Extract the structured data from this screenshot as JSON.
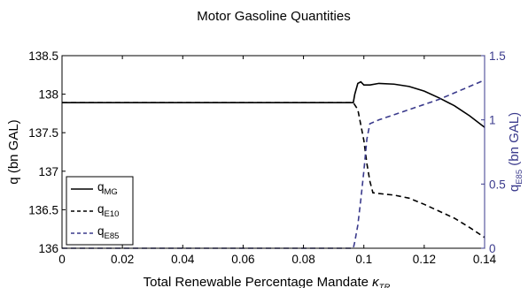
{
  "chart_data": {
    "type": "line",
    "title": "Motor Gasoline Quantities",
    "xlabel": "Total Renewable Percentage Mandate",
    "xlabel_symbol": {
      "main": "κ",
      "sub": "TR"
    },
    "ylabel_left": {
      "main": "q",
      "rest": " (bn GAL)"
    },
    "ylabel_right": {
      "main": "q",
      "sub": "E85",
      "rest": " (bn GAL)"
    },
    "xlim": [
      0,
      0.14
    ],
    "ylim_left": [
      136,
      138.5
    ],
    "ylim_right": [
      0,
      1.5
    ],
    "xticks": [
      "0",
      "0.02",
      "0.04",
      "0.06",
      "0.08",
      "0.1",
      "0.12",
      "0.14"
    ],
    "yticks_left": [
      "136",
      "136.5",
      "137",
      "137.5",
      "138",
      "138.5"
    ],
    "yticks_right": [
      "0",
      "0.5",
      "1",
      "1.5"
    ],
    "legend_position": "bottom-left",
    "grid": false,
    "colors": {
      "left_axis": "#000000",
      "right_axis": "#3a3a8c"
    },
    "series": [
      {
        "name": "q",
        "sub": "MG",
        "axis": "left",
        "style": "solid",
        "color": "#000000",
        "x": [
          0,
          0.02,
          0.04,
          0.06,
          0.08,
          0.0965,
          0.097,
          0.098,
          0.099,
          0.1,
          0.102,
          0.105,
          0.11,
          0.115,
          0.12,
          0.125,
          0.13,
          0.135,
          0.14
        ],
        "y": [
          137.89,
          137.89,
          137.89,
          137.89,
          137.89,
          137.89,
          138.0,
          138.14,
          138.16,
          138.12,
          138.12,
          138.14,
          138.13,
          138.1,
          138.04,
          137.95,
          137.85,
          137.72,
          137.57
        ]
      },
      {
        "name": "q",
        "sub": "E10",
        "axis": "left",
        "style": "dashed",
        "color": "#000000",
        "x": [
          0,
          0.02,
          0.04,
          0.06,
          0.08,
          0.0965,
          0.098,
          0.099,
          0.1,
          0.101,
          0.102,
          0.103,
          0.105,
          0.11,
          0.115,
          0.12,
          0.125,
          0.13,
          0.135,
          0.14
        ],
        "y": [
          137.89,
          137.89,
          137.89,
          137.89,
          137.89,
          137.89,
          137.8,
          137.6,
          137.4,
          137.1,
          136.87,
          136.72,
          136.71,
          136.69,
          136.65,
          136.57,
          136.48,
          136.39,
          136.27,
          136.14
        ]
      },
      {
        "name": "q",
        "sub": "E85",
        "axis": "right",
        "style": "dashed",
        "color": "#3a3a8c",
        "x": [
          0,
          0.02,
          0.04,
          0.06,
          0.08,
          0.0965,
          0.097,
          0.098,
          0.099,
          0.1,
          0.101,
          0.102,
          0.105,
          0.11,
          0.115,
          0.12,
          0.125,
          0.13,
          0.135,
          0.14
        ],
        "y": [
          0,
          0,
          0,
          0,
          0,
          0,
          0.05,
          0.18,
          0.38,
          0.6,
          0.85,
          0.97,
          1.0,
          1.04,
          1.08,
          1.12,
          1.16,
          1.21,
          1.26,
          1.31
        ]
      }
    ]
  }
}
